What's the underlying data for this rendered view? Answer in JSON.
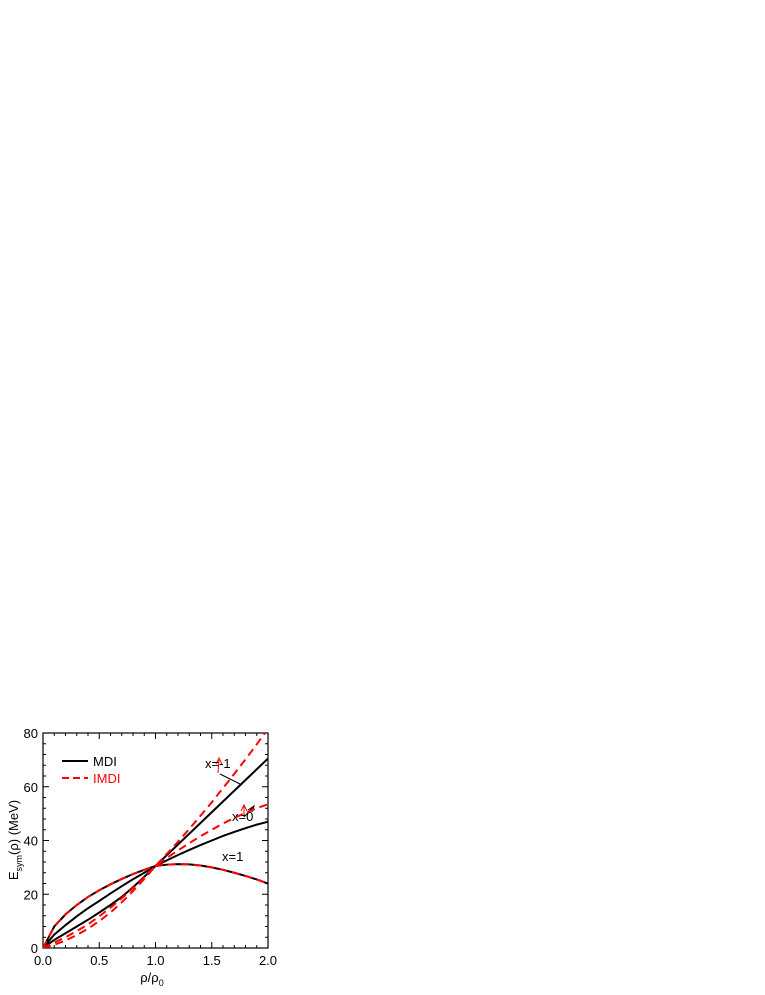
{
  "chart_data": {
    "type": "line",
    "ylabel": {
      "main": "E",
      "sub": "sym",
      "rest": "(ρ) (MeV)"
    },
    "xlabel": {
      "main": "ρ/ρ",
      "sub": "0"
    },
    "xlim": [
      0,
      2
    ],
    "ylim": [
      0,
      80
    ],
    "xticks": [
      {
        "value": 0,
        "label": "0.0"
      },
      {
        "value": 0.5,
        "label": "0.5"
      },
      {
        "value": 1,
        "label": "1.0"
      },
      {
        "value": 1.5,
        "label": "1.5"
      },
      {
        "value": 2,
        "label": "2.0"
      }
    ],
    "yticks": [
      0,
      20,
      40,
      60,
      80
    ],
    "x": [
      0,
      0.1,
      0.2,
      0.3,
      0.4,
      0.5,
      0.6,
      0.7,
      0.8,
      0.9,
      1.0,
      1.1,
      1.2,
      1.3,
      1.4,
      1.5,
      1.6,
      1.7,
      1.8,
      1.9,
      2.0
    ],
    "series": [
      {
        "name": "MDI",
        "color": "#000000",
        "dashed": false,
        "curves": [
          {
            "values": [
              0,
              3,
              5.5,
              8,
              10.5,
              13.2,
              16,
              19,
              22.6,
              26.5,
              30.5,
              34.5,
              38.5,
              42.5,
              46.5,
              50.5,
              54.5,
              58.5,
              62.5,
              66.5,
              70.5
            ]
          },
          {
            "values": [
              0,
              5,
              8.5,
              11.8,
              14.8,
              17.5,
              20.3,
              23,
              25.6,
              28,
              30.5,
              32.6,
              34.6,
              36.5,
              38.3,
              40,
              41.7,
              43.2,
              44.6,
              45.9,
              47
            ]
          },
          {
            "values": [
              0,
              8,
              12.5,
              16,
              19,
              21.5,
              23.7,
              25.7,
              27.5,
              29.1,
              30.5,
              31,
              31.2,
              31.1,
              30.7,
              30,
              29.1,
              28,
              26.8,
              25.5,
              24
            ]
          }
        ]
      },
      {
        "name": "IMDI",
        "color": "#ff0000",
        "dashed": true,
        "curves": [
          {
            "values": [
              0,
              1.2,
              2.8,
              4.8,
              7.2,
              10,
              13.2,
              17,
              21.2,
              25.7,
              30.5,
              35,
              39.5,
              44.3,
              49.2,
              54.2,
              59.5,
              64.8,
              70.2,
              75.8,
              81.5
            ]
          },
          {
            "values": [
              0,
              2,
              4,
              6.3,
              8.8,
              11.8,
              15,
              18.5,
              22.3,
              26.3,
              30.5,
              33.5,
              36.3,
              39,
              41.6,
              44,
              46.3,
              48.4,
              50.3,
              52,
              53.5
            ]
          },
          {
            "values": [
              0,
              8,
              12.5,
              16,
              19,
              21.5,
              23.7,
              25.7,
              27.5,
              29.1,
              30.5,
              31,
              31.2,
              31.1,
              30.7,
              30,
              29.1,
              28,
              26.8,
              25.5,
              24
            ]
          }
        ]
      }
    ],
    "annotations": [
      "x=-1",
      "x=0",
      "x=1"
    ]
  }
}
